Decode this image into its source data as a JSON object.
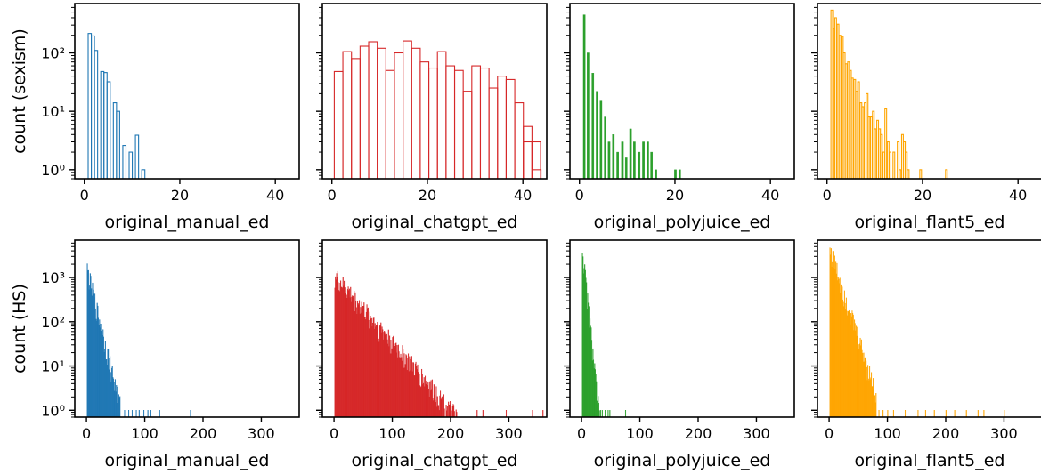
{
  "figure": {
    "row_ylabels": [
      "count (sexism)",
      "count (HS)"
    ]
  },
  "chart_data": [
    {
      "type": "histogram",
      "row": 0,
      "col": 0,
      "xlabel": "original_manual_ed",
      "ylabel": "count (sexism)",
      "xlim": [
        -2,
        45
      ],
      "ylim": [
        0.7,
        700
      ],
      "yscale": "log",
      "xticks": [
        0,
        20,
        40
      ],
      "yticks": [
        1,
        10,
        100
      ],
      "ytick_labels": [
        "10⁰",
        "10¹",
        "10²"
      ],
      "style": "step",
      "color": "#1f77b4",
      "bins": {
        "start": 0.8,
        "width": 0.66
      },
      "values": [
        215,
        195,
        110,
        0,
        48,
        46,
        32,
        0,
        14,
        10,
        0,
        2.6,
        0,
        2,
        0,
        3.9,
        0,
        1,
        0
      ]
    },
    {
      "type": "histogram",
      "row": 0,
      "col": 1,
      "xlabel": "original_chatgpt_ed",
      "ylabel": "",
      "xlim": [
        -2,
        45
      ],
      "ylim": [
        0.7,
        700
      ],
      "yscale": "log",
      "xticks": [
        0,
        20,
        40
      ],
      "yticks": [
        1,
        10,
        100
      ],
      "ytick_labels": [
        "",
        "",
        ""
      ],
      "style": "step",
      "color": "#d62728",
      "bins": {
        "start": 0.5,
        "width": 1.8
      },
      "values": [
        48,
        105,
        80,
        130,
        155,
        120,
        50,
        100,
        160,
        120,
        70,
        55,
        105,
        60,
        50,
        22,
        60,
        55,
        25,
        40,
        35,
        14,
        5.5,
        3,
        0,
        0,
        0,
        0,
        0,
        0,
        0,
        1,
        0,
        0,
        0,
        0,
        0,
        0,
        0,
        0,
        0,
        0,
        0,
        0,
        0,
        0,
        0,
        0,
        0,
        0,
        0,
        0,
        0,
        0,
        0,
        0,
        0,
        0,
        0,
        0,
        0,
        0,
        0,
        0,
        0,
        0,
        0,
        0,
        0,
        0,
        0,
        0
      ],
      "extra_bars": [
        [
          40.1,
          3
        ],
        [
          42.0,
          1
        ]
      ]
    },
    {
      "type": "histogram",
      "row": 0,
      "col": 2,
      "xlabel": "original_polyjuice_ed",
      "ylabel": "",
      "xlim": [
        -2,
        45
      ],
      "ylim": [
        0.7,
        700
      ],
      "yscale": "log",
      "xticks": [
        0,
        20,
        40
      ],
      "yticks": [
        1,
        10,
        100
      ],
      "ytick_labels": [
        "",
        "",
        ""
      ],
      "style": "filled",
      "color": "#2ca02c",
      "bars": [
        [
          1,
          450
        ],
        [
          1.8,
          100
        ],
        [
          2.8,
          45
        ],
        [
          3.7,
          22
        ],
        [
          4.5,
          15
        ],
        [
          5.4,
          8
        ],
        [
          6.2,
          3
        ],
        [
          7.1,
          4
        ],
        [
          8.0,
          2
        ],
        [
          9.0,
          3
        ],
        [
          9.8,
          1.6
        ],
        [
          10.7,
          5
        ],
        [
          11.5,
          3
        ],
        [
          12.5,
          2
        ],
        [
          13.4,
          3
        ],
        [
          14.3,
          3
        ],
        [
          15.1,
          2
        ],
        [
          16.0,
          1
        ],
        [
          20.1,
          1
        ],
        [
          21.0,
          1
        ]
      ]
    },
    {
      "type": "histogram",
      "row": 0,
      "col": 3,
      "xlabel": "original_flant5_ed",
      "ylabel": "",
      "xlim": [
        -2,
        45
      ],
      "ylim": [
        0.7,
        700
      ],
      "yscale": "log",
      "xticks": [
        0,
        20,
        40
      ],
      "yticks": [
        1,
        10,
        100
      ],
      "ytick_labels": [
        "",
        "",
        ""
      ],
      "style": "step",
      "color": "#ffa500",
      "bars": [
        [
          1.0,
          540
        ],
        [
          1.4,
          260
        ],
        [
          1.8,
          400
        ],
        [
          2.3,
          310
        ],
        [
          2.7,
          200
        ],
        [
          3.2,
          190
        ],
        [
          3.6,
          100
        ],
        [
          4.0,
          65
        ],
        [
          4.5,
          70
        ],
        [
          4.9,
          50
        ],
        [
          5.3,
          37
        ],
        [
          5.8,
          35
        ],
        [
          6.2,
          22
        ],
        [
          6.6,
          32
        ],
        [
          7.1,
          14
        ],
        [
          7.5,
          12
        ],
        [
          8.0,
          14
        ],
        [
          8.4,
          20
        ],
        [
          8.8,
          8
        ],
        [
          9.3,
          8
        ],
        [
          9.7,
          10
        ],
        [
          10.1,
          5
        ],
        [
          10.6,
          7
        ],
        [
          11.0,
          5
        ],
        [
          11.4,
          4
        ],
        [
          11.9,
          2
        ],
        [
          12.3,
          11
        ],
        [
          12.8,
          3
        ],
        [
          13.2,
          2
        ],
        [
          14.0,
          2
        ],
        [
          14.9,
          3
        ],
        [
          15.3,
          1
        ],
        [
          15.8,
          4
        ],
        [
          16.2,
          3
        ],
        [
          16.6,
          2
        ],
        [
          17.0,
          1
        ],
        [
          19.6,
          1
        ],
        [
          25.0,
          1
        ]
      ]
    },
    {
      "type": "histogram",
      "row": 1,
      "col": 0,
      "xlabel": "original_manual_ed",
      "ylabel": "count (HS)",
      "xlim": [
        -20,
        365
      ],
      "ylim": [
        0.7,
        7000
      ],
      "yscale": "log",
      "xticks": [
        0,
        100,
        200,
        300
      ],
      "yticks": [
        1,
        10,
        100,
        1000
      ],
      "ytick_labels": [
        "10⁰",
        "10¹",
        "10²",
        "10³"
      ],
      "style": "dense",
      "color": "#1f77b4",
      "decay": {
        "start": 1,
        "peak": 1500,
        "rate": 0.125,
        "end": 60,
        "sparse": [
          65,
          72,
          78,
          85,
          90,
          98,
          105,
          110,
          125,
          178
        ]
      }
    },
    {
      "type": "histogram",
      "row": 1,
      "col": 1,
      "xlabel": "original_chatgpt_ed",
      "ylabel": "",
      "xlim": [
        -20,
        365
      ],
      "ylim": [
        0.7,
        7000
      ],
      "yscale": "log",
      "xticks": [
        0,
        100,
        200,
        300
      ],
      "yticks": [
        1,
        10,
        100,
        1000
      ],
      "ytick_labels": [
        "",
        "",
        "",
        ""
      ],
      "style": "dense",
      "color": "#d62728",
      "decay": {
        "start": 1,
        "peak": 1100,
        "rate": 0.035,
        "end": 210,
        "sparse": [
          245,
          255,
          295,
          340,
          358
        ]
      }
    },
    {
      "type": "histogram",
      "row": 1,
      "col": 2,
      "xlabel": "original_polyjuice_ed",
      "ylabel": "",
      "xlim": [
        -20,
        365
      ],
      "ylim": [
        0.7,
        7000
      ],
      "yscale": "log",
      "xticks": [
        0,
        100,
        200,
        300
      ],
      "yticks": [
        1,
        10,
        100,
        1000
      ],
      "ytick_labels": [
        "",
        "",
        "",
        ""
      ],
      "style": "dense",
      "color": "#2ca02c",
      "decay": {
        "start": 1,
        "peak": 4500,
        "rate": 0.3,
        "end": 30,
        "sparse": [
          32,
          35,
          40,
          45,
          48,
          75
        ]
      }
    },
    {
      "type": "histogram",
      "row": 1,
      "col": 3,
      "xlabel": "original_flant5_ed",
      "ylabel": "",
      "xlim": [
        -20,
        365
      ],
      "ylim": [
        0.7,
        7000
      ],
      "yscale": "log",
      "xticks": [
        0,
        100,
        200,
        300
      ],
      "yticks": [
        1,
        10,
        100,
        1000
      ],
      "ytick_labels": [
        "",
        "",
        "",
        ""
      ],
      "style": "dense",
      "color": "#ffa500",
      "decay": {
        "start": 1,
        "peak": 4500,
        "rate": 0.095,
        "end": 80,
        "sparse": [
          85,
          92,
          100,
          110,
          130,
          152,
          165,
          180,
          200,
          215,
          235,
          255,
          265,
          300
        ]
      }
    }
  ]
}
